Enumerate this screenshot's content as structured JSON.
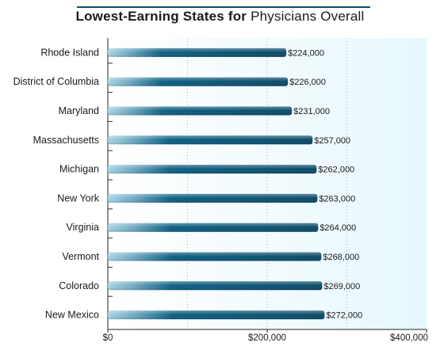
{
  "chart_data": {
    "type": "bar",
    "orientation": "horizontal",
    "title_bold": "Lowest-Earning States for",
    "title_regular": "Physicians Overall",
    "categories": [
      "Rhode Island",
      "District of Columbia",
      "Maryland",
      "Massachusetts",
      "Michigan",
      "New York",
      "Virginia",
      "Vermont",
      "Colorado",
      "New Mexico"
    ],
    "values": [
      224000,
      226000,
      231000,
      257000,
      262000,
      263000,
      264000,
      268000,
      269000,
      272000
    ],
    "value_labels": [
      "$224,000",
      "$226,000",
      "$231,000",
      "$257,000",
      "$262,000",
      "$263,000",
      "$264,000",
      "$268,000",
      "$269,000",
      "$272,000"
    ],
    "x_ticks": [
      0,
      200000,
      400000
    ],
    "x_tick_labels": [
      "$0",
      "$200,000",
      "$400,000"
    ],
    "xlim": [
      0,
      400000
    ],
    "grid": true,
    "colors": {
      "bar_dark": "#0b4f6c",
      "bar_light": "#9ecbdc",
      "plot_bg": "#eef9fc",
      "title_rule": "#0b4f6c"
    }
  }
}
